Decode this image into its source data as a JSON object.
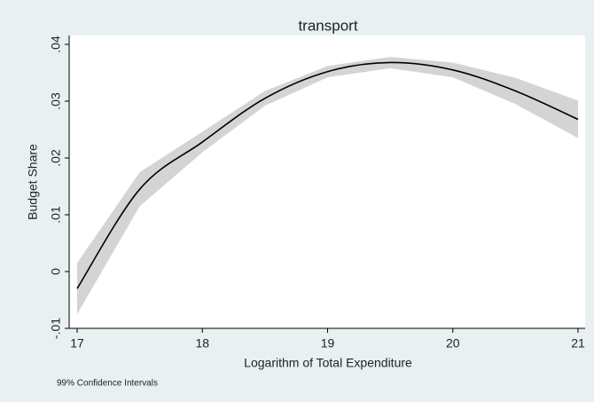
{
  "chart_data": {
    "type": "line",
    "title": "transport",
    "x_label": "Logarithm of Total Expenditure",
    "y_label": "Budget Share",
    "note": "99% Confidence Intervals",
    "x": [
      17,
      17.5,
      18,
      18.5,
      19,
      19.5,
      20,
      20.5,
      21
    ],
    "values": [
      -0.003,
      0.0145,
      0.0228,
      0.0305,
      0.0352,
      0.0368,
      0.0355,
      0.0318,
      0.0268
    ],
    "lower": [
      -0.0075,
      0.0115,
      0.021,
      0.0292,
      0.0342,
      0.0358,
      0.0342,
      0.0295,
      0.0235
    ],
    "upper": [
      0.0015,
      0.0175,
      0.0246,
      0.0318,
      0.0362,
      0.0378,
      0.0368,
      0.0341,
      0.0301
    ],
    "color": "#000000",
    "band_color": "#d4d4d4",
    "xlim": [
      17,
      21
    ],
    "xticks": [
      17,
      18,
      19,
      20,
      21
    ],
    "ylim": [
      -0.01,
      0.04
    ],
    "yticks": [
      {
        "value": -0.01,
        "label": "-.01"
      },
      0,
      {
        "value": 0.01,
        "label": ".01"
      },
      {
        "value": 0.02,
        "label": ".02"
      },
      {
        "value": 0.03,
        "label": ".03"
      },
      {
        "value": 0.04,
        "label": ".04"
      }
    ]
  }
}
